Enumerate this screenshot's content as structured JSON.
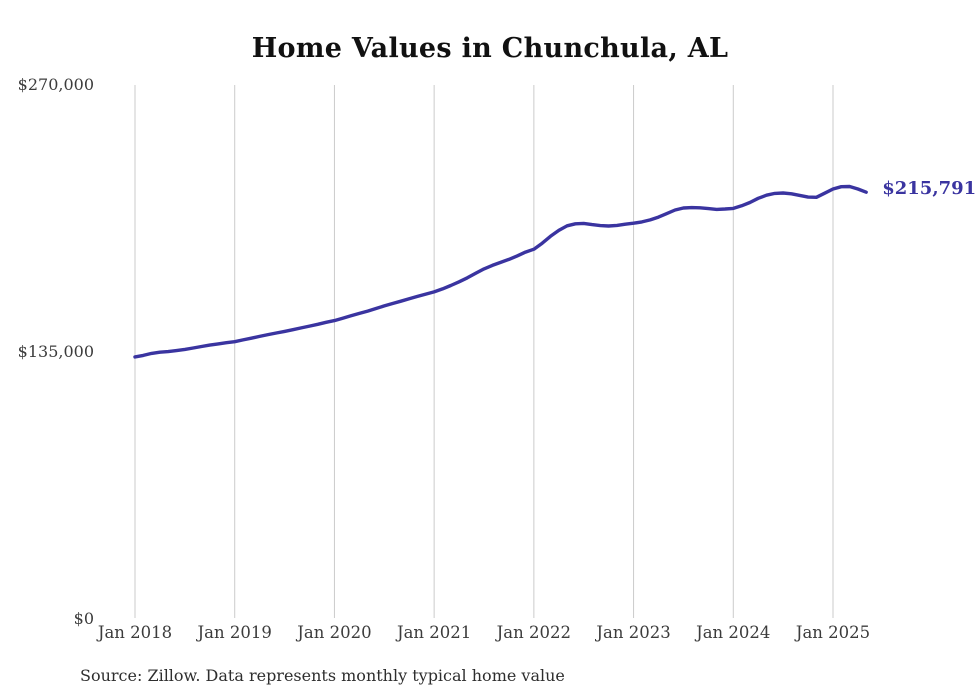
{
  "title": "Home Values in Chunchula, AL",
  "source_note": "Source: Zillow. Data represents monthly typical home value",
  "end_label": "$215,791",
  "colors": {
    "line": "#3a34a0",
    "end_label_text": "#3a34a0",
    "grid": "#cbcbcb",
    "axis_text": "#3c3c3c",
    "title_text": "#111111"
  },
  "chart_data": {
    "type": "line",
    "title": "Home Values in Chunchula, AL",
    "xlabel": "",
    "ylabel": "",
    "legend": "none",
    "grid": "vertical-only",
    "ylim": [
      0,
      270000
    ],
    "y_ticks": [
      {
        "label": "$0",
        "value": 0
      },
      {
        "label": "$135,000",
        "value": 135000
      },
      {
        "label": "$270,000",
        "value": 270000
      }
    ],
    "x_ticks": [
      {
        "label": "Jan 2018",
        "month_index": 0
      },
      {
        "label": "Jan 2019",
        "month_index": 12
      },
      {
        "label": "Jan 2020",
        "month_index": 24
      },
      {
        "label": "Jan 2021",
        "month_index": 36
      },
      {
        "label": "Jan 2022",
        "month_index": 48
      },
      {
        "label": "Jan 2023",
        "month_index": 60
      },
      {
        "label": "Jan 2024",
        "month_index": 72
      },
      {
        "label": "Jan 2025",
        "month_index": 84
      }
    ],
    "x_start_month": "Jan 2018",
    "x_end_month": "May 2025",
    "latest_value": 215791,
    "series": [
      {
        "name": "Monthly typical home value",
        "values": [
          132500,
          133300,
          134300,
          134900,
          135200,
          135700,
          136300,
          137000,
          137800,
          138500,
          139100,
          139700,
          140200,
          141100,
          142000,
          142900,
          143800,
          144600,
          145400,
          146300,
          147200,
          148100,
          149000,
          150000,
          150900,
          152100,
          153300,
          154500,
          155700,
          157000,
          158300,
          159500,
          160700,
          161900,
          163100,
          164300,
          165400,
          166900,
          168600,
          170500,
          172500,
          174800,
          177000,
          178800,
          180300,
          181800,
          183600,
          185500,
          187000,
          190000,
          193500,
          196500,
          198800,
          199800,
          200000,
          199400,
          198900,
          198700,
          199000,
          199600,
          200100,
          200800,
          201800,
          203200,
          205000,
          206800,
          207800,
          208000,
          207900,
          207500,
          207100,
          207300,
          207600,
          208900,
          210600,
          212700,
          214300,
          215200,
          215400,
          215000,
          214200,
          213300,
          213200,
          215300,
          217400,
          218600,
          218700,
          217400,
          215791
        ]
      }
    ]
  }
}
